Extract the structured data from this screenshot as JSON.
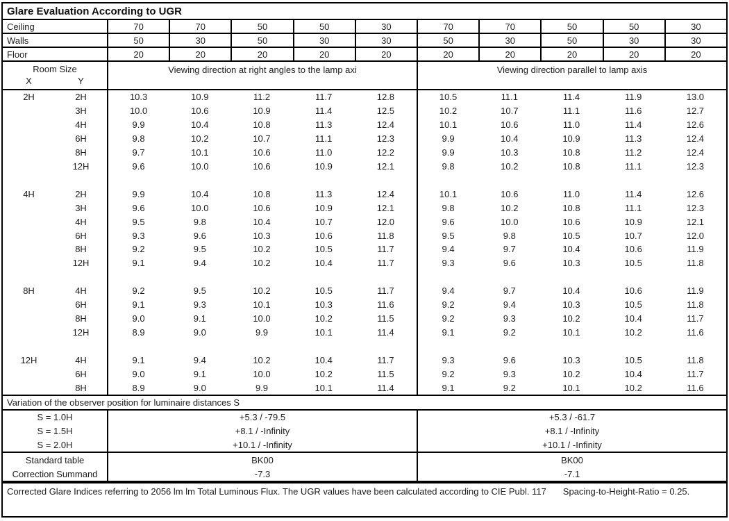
{
  "title": "Glare Evaluation According to UGR",
  "reflectance_rows": [
    {
      "label": "Ceiling",
      "values": [
        "70",
        "70",
        "50",
        "50",
        "30",
        "70",
        "70",
        "50",
        "50",
        "30"
      ]
    },
    {
      "label": "Walls",
      "values": [
        "50",
        "30",
        "50",
        "30",
        "30",
        "50",
        "30",
        "50",
        "30",
        "30"
      ]
    },
    {
      "label": "Floor",
      "values": [
        "20",
        "20",
        "20",
        "20",
        "20",
        "20",
        "20",
        "20",
        "20",
        "20"
      ]
    }
  ],
  "header": {
    "room_size": "Room Size",
    "x": "X",
    "y": "Y",
    "left_group": "Viewing direction at right angles to the lamp axi",
    "right_group": "Viewing direction parallel to lamp axis"
  },
  "groups": [
    {
      "x": "2H",
      "rows": [
        {
          "y": "2H",
          "values": [
            "10.3",
            "10.9",
            "11.2",
            "11.7",
            "12.8",
            "10.5",
            "11.1",
            "11.4",
            "11.9",
            "13.0"
          ]
        },
        {
          "y": "3H",
          "values": [
            "10.0",
            "10.6",
            "10.9",
            "11.4",
            "12.5",
            "10.2",
            "10.7",
            "11.1",
            "11.6",
            "12.7"
          ]
        },
        {
          "y": "4H",
          "values": [
            "9.9",
            "10.4",
            "10.8",
            "11.3",
            "12.4",
            "10.1",
            "10.6",
            "11.0",
            "11.4",
            "12.6"
          ]
        },
        {
          "y": "6H",
          "values": [
            "9.8",
            "10.2",
            "10.7",
            "11.1",
            "12.3",
            "9.9",
            "10.4",
            "10.9",
            "11.3",
            "12.4"
          ]
        },
        {
          "y": "8H",
          "values": [
            "9.7",
            "10.1",
            "10.6",
            "11.0",
            "12.2",
            "9.9",
            "10.3",
            "10.8",
            "11.2",
            "12.4"
          ]
        },
        {
          "y": "12H",
          "values": [
            "9.6",
            "10.0",
            "10.6",
            "10.9",
            "12.1",
            "9.8",
            "10.2",
            "10.8",
            "11.1",
            "12.3"
          ]
        }
      ]
    },
    {
      "x": "4H",
      "rows": [
        {
          "y": "2H",
          "values": [
            "9.9",
            "10.4",
            "10.8",
            "11.3",
            "12.4",
            "10.1",
            "10.6",
            "11.0",
            "11.4",
            "12.6"
          ]
        },
        {
          "y": "3H",
          "values": [
            "9.6",
            "10.0",
            "10.6",
            "10.9",
            "12.1",
            "9.8",
            "10.2",
            "10.8",
            "11.1",
            "12.3"
          ]
        },
        {
          "y": "4H",
          "values": [
            "9.5",
            "9.8",
            "10.4",
            "10.7",
            "12.0",
            "9.6",
            "10.0",
            "10.6",
            "10.9",
            "12.1"
          ]
        },
        {
          "y": "6H",
          "values": [
            "9.3",
            "9.6",
            "10.3",
            "10.6",
            "11.8",
            "9.5",
            "9.8",
            "10.5",
            "10.7",
            "12.0"
          ]
        },
        {
          "y": "8H",
          "values": [
            "9.2",
            "9.5",
            "10.2",
            "10.5",
            "11.7",
            "9.4",
            "9.7",
            "10.4",
            "10.6",
            "11.9"
          ]
        },
        {
          "y": "12H",
          "values": [
            "9.1",
            "9.4",
            "10.2",
            "10.4",
            "11.7",
            "9.3",
            "9.6",
            "10.3",
            "10.5",
            "11.8"
          ]
        }
      ]
    },
    {
      "x": "8H",
      "rows": [
        {
          "y": "4H",
          "values": [
            "9.2",
            "9.5",
            "10.2",
            "10.5",
            "11.7",
            "9.4",
            "9.7",
            "10.4",
            "10.6",
            "11.9"
          ]
        },
        {
          "y": "6H",
          "values": [
            "9.1",
            "9.3",
            "10.1",
            "10.3",
            "11.6",
            "9.2",
            "9.4",
            "10.3",
            "10.5",
            "11.8"
          ]
        },
        {
          "y": "8H",
          "values": [
            "9.0",
            "9.1",
            "10.0",
            "10.2",
            "11.5",
            "9.2",
            "9.3",
            "10.2",
            "10.4",
            "11.7"
          ]
        },
        {
          "y": "12H",
          "values": [
            "8.9",
            "9.0",
            "9.9",
            "10.1",
            "11.4",
            "9.1",
            "9.2",
            "10.1",
            "10.2",
            "11.6"
          ]
        }
      ]
    },
    {
      "x": "12H",
      "rows": [
        {
          "y": "4H",
          "values": [
            "9.1",
            "9.4",
            "10.2",
            "10.4",
            "11.7",
            "9.3",
            "9.6",
            "10.3",
            "10.5",
            "11.8"
          ]
        },
        {
          "y": "6H",
          "values": [
            "9.0",
            "9.1",
            "10.0",
            "10.2",
            "11.5",
            "9.2",
            "9.3",
            "10.2",
            "10.4",
            "11.7"
          ]
        },
        {
          "y": "8H",
          "values": [
            "8.9",
            "9.0",
            "9.9",
            "10.1",
            "11.4",
            "9.1",
            "9.2",
            "10.1",
            "10.2",
            "11.6"
          ]
        }
      ]
    }
  ],
  "variation": {
    "title": "Variation of the observer position for luminaire distances S",
    "rows": [
      {
        "label": "S = 1.0H",
        "left": "+5.3 / -79.5",
        "right": "+5.3 / -61.7"
      },
      {
        "label": "S = 1.5H",
        "left": "+8.1 / -Infinity",
        "right": "+8.1 / -Infinity"
      },
      {
        "label": "S = 2.0H",
        "left": "+10.1 / -Infinity",
        "right": "+10.1 / -Infinity"
      }
    ]
  },
  "summary": {
    "rows": [
      {
        "label": "Standard table",
        "left": "BK00",
        "right": "BK00"
      },
      {
        "label": "Correction Summand",
        "left": "-7.3",
        "right": "-7.1"
      }
    ]
  },
  "footer": {
    "part1": "Corrected Glare Indices referring to 2056 lm lm Total Luminous Flux. The UGR values have been calculated according to CIE Publ. 117",
    "part2": "Spacing-to-Height-Ratio = 0.25."
  },
  "colors": {
    "border": "#000000",
    "text": "#1c1c1c",
    "background": "#ffffff"
  }
}
